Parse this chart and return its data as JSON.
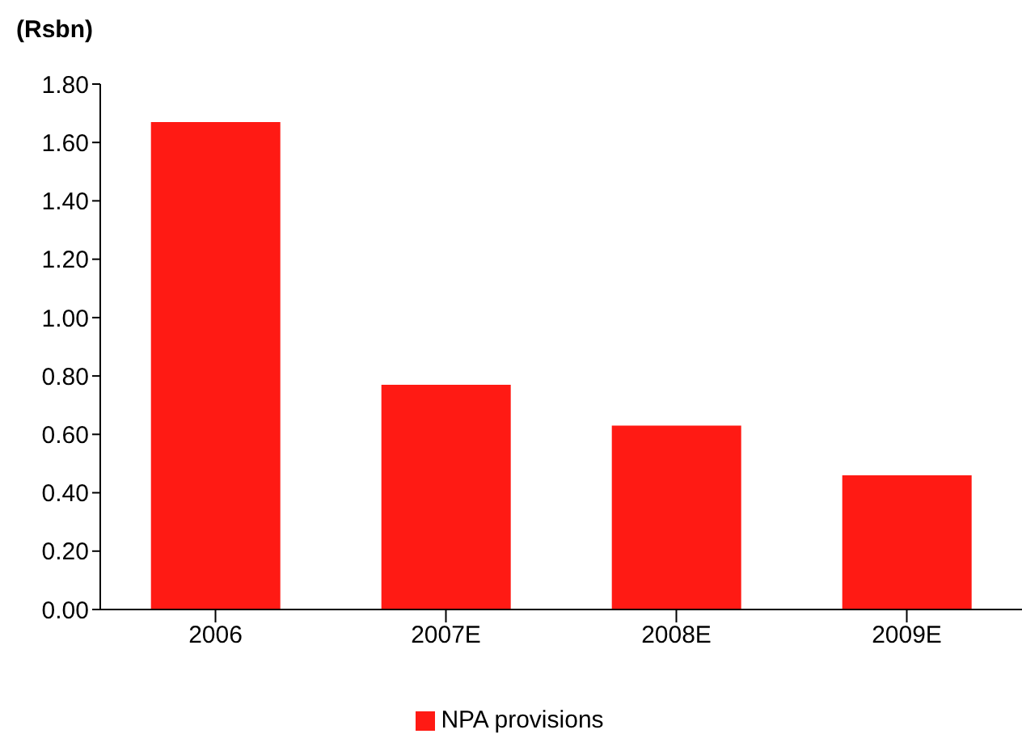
{
  "chart_data": {
    "type": "bar",
    "ylabel": "(Rsbn)",
    "categories": [
      "2006",
      "2007E",
      "2008E",
      "2009E"
    ],
    "series": [
      {
        "name": "NPA provisions",
        "color": "#ff1a14",
        "values": [
          1.67,
          0.77,
          0.63,
          0.46
        ]
      }
    ],
    "ylim": [
      0,
      1.8
    ],
    "yticks": [
      {
        "value": 0,
        "label": "0.00"
      },
      {
        "value": 0.2,
        "label": "0.20"
      },
      {
        "value": 0.4,
        "label": "0.40"
      },
      {
        "value": 0.6,
        "label": "0.60"
      },
      {
        "value": 0.8,
        "label": "0.80"
      },
      {
        "value": 1,
        "label": "1.00"
      },
      {
        "value": 1.2,
        "label": "1.20"
      },
      {
        "value": 1.4,
        "label": "1.40"
      },
      {
        "value": 1.6,
        "label": "1.60"
      },
      {
        "value": 1.8,
        "label": "1.80"
      }
    ],
    "grid": false,
    "legend": "bottom"
  }
}
